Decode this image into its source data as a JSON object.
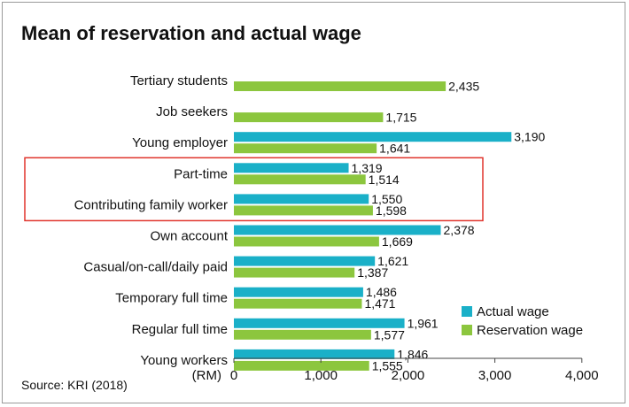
{
  "chart_data": {
    "type": "bar",
    "orientation": "horizontal",
    "title": "Mean of reservation and actual wage",
    "unit_label": "(RM)",
    "source": "Source: KRI (2018)",
    "categories": [
      "Tertiary students",
      "Job seekers",
      "Young employer",
      "Part-time",
      "Contributing family worker",
      "Own account",
      "Casual/on-call/daily paid",
      "Temporary full time",
      "Regular full time",
      "Young workers"
    ],
    "series": [
      {
        "name": "Actual wage",
        "color": "#1ab0c8",
        "values": [
          null,
          null,
          3190,
          1319,
          1550,
          2378,
          1621,
          1486,
          1961,
          1846
        ],
        "labels": [
          "",
          "",
          "3,190",
          "1,319",
          "1,550",
          "2,378",
          "1,621",
          "1,486",
          "1,961",
          "1,846"
        ]
      },
      {
        "name": "Reservation wage",
        "color": "#8cc63e",
        "values": [
          2435,
          1715,
          1641,
          1514,
          1598,
          1669,
          1387,
          1471,
          1577,
          1555
        ],
        "labels": [
          "2,435",
          "1,715",
          "1,641",
          "1,514",
          "1,598",
          "1,669",
          "1,387",
          "1,471",
          "1,577",
          "1,555"
        ]
      }
    ],
    "xlim": [
      0,
      4000
    ],
    "xticks": [
      0,
      1000,
      2000,
      3000,
      4000
    ],
    "xtick_labels": [
      "0",
      "1,000",
      "2,000",
      "3,000",
      "4,000"
    ],
    "grid": false,
    "legend_position": "bottom-right",
    "highlight": {
      "categories": [
        "Part-time",
        "Contributing family worker"
      ],
      "color": "#e0342c"
    }
  }
}
